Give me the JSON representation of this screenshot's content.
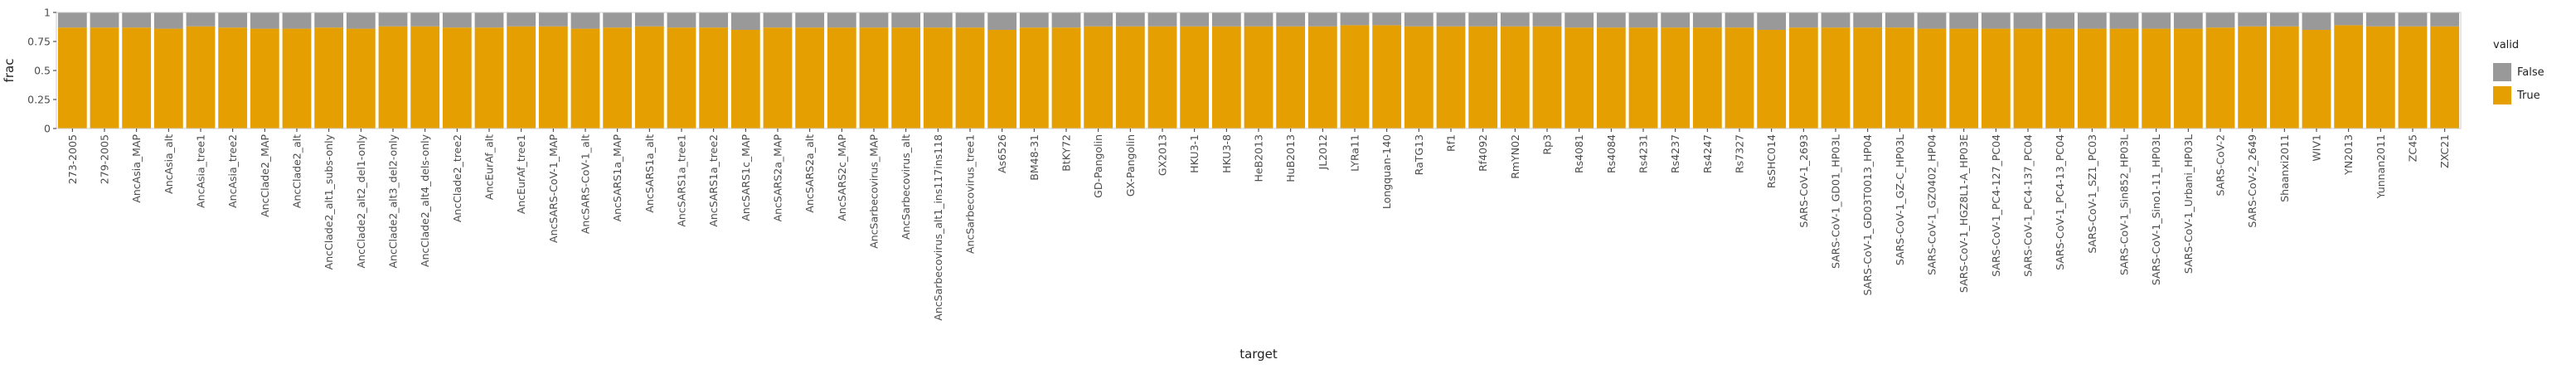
{
  "chart_data": {
    "type": "bar",
    "stacked": true,
    "position": "fill",
    "xlabel": "target",
    "ylabel": "frac",
    "ylim": [
      0,
      1
    ],
    "yticks": [
      "0",
      "0.25",
      "0.5",
      "0.75",
      "1"
    ],
    "grid": false,
    "legend": {
      "title": "valid",
      "placement": "right"
    },
    "colors": {
      "False": "#999999",
      "True": "#e69f00",
      "panel_border": "#cccccc"
    },
    "categories": [
      "273-2005",
      "279-2005",
      "AncAsia_MAP",
      "AncAsia_alt",
      "AncAsia_tree1",
      "AncAsia_tree2",
      "AncClade2_MAP",
      "AncClade2_alt",
      "AncClade2_alt1_subs-only",
      "AncClade2_alt2_del1-only",
      "AncClade2_alt3_del2-only",
      "AncClade2_alt4_dels-only",
      "AncClade2_tree2",
      "AncEurAf_alt",
      "AncEurAf_tree1",
      "AncSARS-CoV-1_MAP",
      "AncSARS-CoV-1_alt",
      "AncSARS1a_MAP",
      "AncSARS1a_alt",
      "AncSARS1a_tree1",
      "AncSARS1a_tree2",
      "AncSARS1c_MAP",
      "AncSARS2a_MAP",
      "AncSARS2a_alt",
      "AncSARS2c_MAP",
      "AncSarbecovirus_MAP",
      "AncSarbecovirus_alt",
      "AncSarbecovirus_alt1_ins117ins118",
      "AncSarbecovirus_tree1",
      "As6526",
      "BM48-31",
      "BtKY72",
      "GD-Pangolin",
      "GX-Pangolin",
      "GX2013",
      "HKU3-1",
      "HKU3-8",
      "HeB2013",
      "HuB2013",
      "JL2012",
      "LYRa11",
      "Longquan-140",
      "RaTG13",
      "Rf1",
      "Rf4092",
      "RmYN02",
      "Rp3",
      "Rs4081",
      "Rs4084",
      "Rs4231",
      "Rs4237",
      "Rs4247",
      "Rs7327",
      "RsSHC014",
      "SARS-CoV-1_2693",
      "SARS-CoV-1_GD01_HP03L",
      "SARS-CoV-1_GD03T0013_HP04",
      "SARS-CoV-1_GZ-C_HP03L",
      "SARS-CoV-1_GZ0402_HP04",
      "SARS-CoV-1_HGZ8L1-A_HP03E",
      "SARS-CoV-1_PC4-127_PC04",
      "SARS-CoV-1_PC4-137_PC04",
      "SARS-CoV-1_PC4-13_PC04",
      "SARS-CoV-1_SZ1_PC03",
      "SARS-CoV-1_Sin852_HP03L",
      "SARS-CoV-1_Sino1-11_HP03L",
      "SARS-CoV-1_Urbani_HP03L",
      "SARS-CoV-2",
      "SARS-CoV-2_2649",
      "Shaanxi2011",
      "WIV1",
      "YN2013",
      "Yunnan2011",
      "ZC45",
      "ZXC21"
    ],
    "series": [
      {
        "name": "False",
        "values": [
          0.13,
          0.13,
          0.13,
          0.14,
          0.12,
          0.13,
          0.14,
          0.14,
          0.13,
          0.14,
          0.12,
          0.12,
          0.13,
          0.13,
          0.12,
          0.12,
          0.14,
          0.13,
          0.12,
          0.13,
          0.13,
          0.15,
          0.13,
          0.13,
          0.13,
          0.13,
          0.13,
          0.13,
          0.13,
          0.15,
          0.13,
          0.13,
          0.12,
          0.12,
          0.12,
          0.12,
          0.12,
          0.12,
          0.12,
          0.12,
          0.11,
          0.11,
          0.12,
          0.12,
          0.12,
          0.12,
          0.12,
          0.13,
          0.13,
          0.13,
          0.13,
          0.13,
          0.13,
          0.15,
          0.13,
          0.13,
          0.13,
          0.13,
          0.14,
          0.14,
          0.14,
          0.14,
          0.14,
          0.14,
          0.14,
          0.14,
          0.14,
          0.13,
          0.12,
          0.12,
          0.15,
          0.11,
          0.12,
          0.12,
          0.12
        ]
      },
      {
        "name": "True",
        "values": [
          0.87,
          0.87,
          0.87,
          0.86,
          0.88,
          0.87,
          0.86,
          0.86,
          0.87,
          0.86,
          0.88,
          0.88,
          0.87,
          0.87,
          0.88,
          0.88,
          0.86,
          0.87,
          0.88,
          0.87,
          0.87,
          0.85,
          0.87,
          0.87,
          0.87,
          0.87,
          0.87,
          0.87,
          0.87,
          0.85,
          0.87,
          0.87,
          0.88,
          0.88,
          0.88,
          0.88,
          0.88,
          0.88,
          0.88,
          0.88,
          0.89,
          0.89,
          0.88,
          0.88,
          0.88,
          0.88,
          0.88,
          0.87,
          0.87,
          0.87,
          0.87,
          0.87,
          0.87,
          0.85,
          0.87,
          0.87,
          0.87,
          0.87,
          0.86,
          0.86,
          0.86,
          0.86,
          0.86,
          0.86,
          0.86,
          0.86,
          0.86,
          0.87,
          0.88,
          0.88,
          0.85,
          0.89,
          0.88,
          0.88,
          0.88
        ]
      }
    ]
  }
}
